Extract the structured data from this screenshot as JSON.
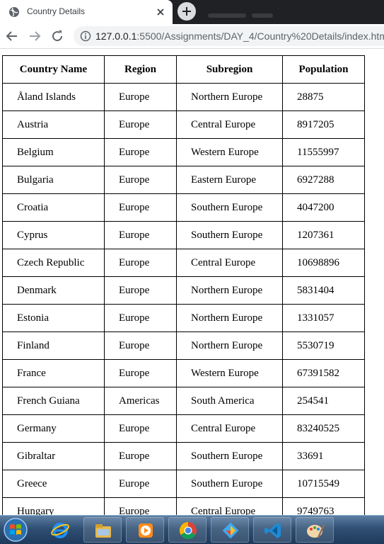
{
  "browser": {
    "tab_title": "Country Details",
    "url_host": "127.0.0.1",
    "url_rest": ":5500/Assignments/DAY_4/Country%20Details/index.html"
  },
  "table": {
    "headers": [
      "Country Name",
      "Region",
      "Subregion",
      "Population"
    ],
    "rows": [
      [
        "Åland Islands",
        "Europe",
        "Northern Europe",
        "28875"
      ],
      [
        "Austria",
        "Europe",
        "Central Europe",
        "8917205"
      ],
      [
        "Belgium",
        "Europe",
        "Western Europe",
        "11555997"
      ],
      [
        "Bulgaria",
        "Europe",
        "Eastern Europe",
        "6927288"
      ],
      [
        "Croatia",
        "Europe",
        "Southern Europe",
        "4047200"
      ],
      [
        "Cyprus",
        "Europe",
        "Southern Europe",
        "1207361"
      ],
      [
        "Czech Republic",
        "Europe",
        "Central Europe",
        "10698896"
      ],
      [
        "Denmark",
        "Europe",
        "Northern Europe",
        "5831404"
      ],
      [
        "Estonia",
        "Europe",
        "Northern Europe",
        "1331057"
      ],
      [
        "Finland",
        "Europe",
        "Northern Europe",
        "5530719"
      ],
      [
        "France",
        "Europe",
        "Western Europe",
        "67391582"
      ],
      [
        "French Guiana",
        "Americas",
        "South America",
        "254541"
      ],
      [
        "Germany",
        "Europe",
        "Central Europe",
        "83240525"
      ],
      [
        "Gibraltar",
        "Europe",
        "Southern Europe",
        "33691"
      ],
      [
        "Greece",
        "Europe",
        "Southern Europe",
        "10715549"
      ],
      [
        "Hungary",
        "Europe",
        "Central Europe",
        "9749763"
      ]
    ]
  },
  "taskbar": {
    "items": [
      "internet-explorer-icon",
      "file-explorer-icon",
      "media-player-icon",
      "chrome-icon",
      "git-icon",
      "vscode-icon",
      "paint-icon"
    ]
  },
  "colors": {
    "chrome_dark": "#202124",
    "omnibox_bg": "#f1f3f4",
    "taskbar_blue": "#2f4f73"
  }
}
